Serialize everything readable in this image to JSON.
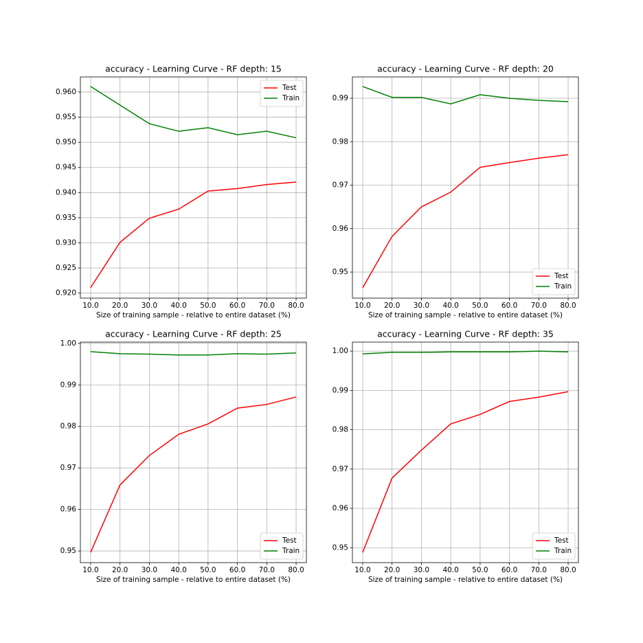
{
  "chart_data": [
    {
      "type": "line",
      "title": "accuracy - Learning Curve - RF depth: 15",
      "x_label": "Size of training sample - relative to entire dataset (%)",
      "x": [
        10,
        20,
        30,
        40,
        50,
        60,
        70,
        80
      ],
      "series": [
        {
          "name": "Test",
          "color": "#ff0000",
          "values": [
            0.9211,
            0.9301,
            0.9349,
            0.9367,
            0.9403,
            0.9408,
            0.9416,
            0.9421
          ]
        },
        {
          "name": "Train",
          "color": "#008000",
          "values": [
            0.9611,
            0.9574,
            0.9537,
            0.9522,
            0.9529,
            0.9515,
            0.9522,
            0.9509
          ]
        }
      ],
      "xlim": [
        6.5,
        83.5
      ],
      "xticks": [
        {
          "value": 10,
          "label": "10.0"
        },
        {
          "value": 20,
          "label": "20.0"
        },
        {
          "value": 30,
          "label": "30.0"
        },
        {
          "value": 40,
          "label": "40.0"
        },
        {
          "value": 50,
          "label": "50.0"
        },
        {
          "value": 60,
          "label": "60.0"
        },
        {
          "value": 70,
          "label": "70.0"
        },
        {
          "value": 80,
          "label": "80.0"
        }
      ],
      "ylim": [
        0.919,
        0.963
      ],
      "yticks": [
        {
          "value": 0.92,
          "label": "0.920"
        },
        0.925,
        {
          "value": 0.93,
          "label": "0.930"
        },
        0.935,
        {
          "value": 0.94,
          "label": "0.940"
        },
        0.945,
        {
          "value": 0.95,
          "label": "0.950"
        },
        0.955,
        {
          "value": 0.96,
          "label": "0.960"
        }
      ],
      "grid": true,
      "legend": "upper right"
    },
    {
      "type": "line",
      "title": "accuracy - Learning Curve - RF depth: 20",
      "x_label": "Size of training sample - relative to entire dataset (%)",
      "x": [
        10,
        20,
        30,
        40,
        50,
        60,
        70,
        80
      ],
      "series": [
        {
          "name": "Test",
          "color": "#ff0000",
          "values": [
            0.9464,
            0.9582,
            0.965,
            0.9684,
            0.9741,
            0.9752,
            0.9762,
            0.977
          ]
        },
        {
          "name": "Train",
          "color": "#008000",
          "values": [
            0.9927,
            0.9902,
            0.9902,
            0.9887,
            0.9908,
            0.99,
            0.9895,
            0.9892
          ]
        }
      ],
      "xlim": [
        6.5,
        83.5
      ],
      "xticks": [
        {
          "value": 10,
          "label": "10.0"
        },
        {
          "value": 20,
          "label": "20.0"
        },
        {
          "value": 30,
          "label": "30.0"
        },
        {
          "value": 40,
          "label": "40.0"
        },
        {
          "value": 50,
          "label": "50.0"
        },
        {
          "value": 60,
          "label": "60.0"
        },
        {
          "value": 70,
          "label": "70.0"
        },
        {
          "value": 80,
          "label": "80.0"
        }
      ],
      "ylim": [
        0.944,
        0.9949
      ],
      "yticks": [
        0.95,
        0.96,
        0.97,
        0.98,
        0.99
      ],
      "grid": true,
      "legend": "lower right"
    },
    {
      "type": "line",
      "title": "accuracy - Learning Curve - RF depth: 25",
      "x_label": "Size of training sample - relative to entire dataset (%)",
      "x": [
        10,
        20,
        30,
        40,
        50,
        60,
        70,
        80
      ],
      "series": [
        {
          "name": "Test",
          "color": "#ff0000",
          "values": [
            0.9497,
            0.9659,
            0.973,
            0.9781,
            0.9806,
            0.9844,
            0.9853,
            0.9871
          ]
        },
        {
          "name": "Train",
          "color": "#008000",
          "values": [
            0.998,
            0.9975,
            0.9974,
            0.9972,
            0.9972,
            0.9975,
            0.9974,
            0.9977
          ]
        }
      ],
      "xlim": [
        6.5,
        83.5
      ],
      "xticks": [
        {
          "value": 10,
          "label": "10.0"
        },
        {
          "value": 20,
          "label": "20.0"
        },
        {
          "value": 30,
          "label": "30.0"
        },
        {
          "value": 40,
          "label": "40.0"
        },
        {
          "value": 50,
          "label": "50.0"
        },
        {
          "value": 60,
          "label": "60.0"
        },
        {
          "value": 70,
          "label": "70.0"
        },
        {
          "value": 80,
          "label": "80.0"
        }
      ],
      "ylim": [
        0.9472,
        1.0003
      ],
      "yticks": [
        0.95,
        0.96,
        0.97,
        0.98,
        0.99,
        {
          "value": 1,
          "label": "1.00"
        }
      ],
      "grid": true,
      "legend": "lower right"
    },
    {
      "type": "line",
      "title": "accuracy - Learning Curve - RF depth: 35",
      "x_label": "Size of training sample - relative to entire dataset (%)",
      "x": [
        10,
        20,
        30,
        40,
        50,
        60,
        70,
        80
      ],
      "series": [
        {
          "name": "Test",
          "color": "#ff0000",
          "values": [
            0.9488,
            0.9677,
            0.9748,
            0.9815,
            0.9839,
            0.9872,
            0.9883,
            0.9897
          ]
        },
        {
          "name": "Train",
          "color": "#008000",
          "values": [
            0.9993,
            0.9997,
            0.9997,
            0.9998,
            0.9998,
            0.9998,
            1.0,
            0.9998
          ]
        }
      ],
      "xlim": [
        6.5,
        83.5
      ],
      "xticks": [
        {
          "value": 10,
          "label": "10.0"
        },
        {
          "value": 20,
          "label": "20.0"
        },
        {
          "value": 30,
          "label": "30.0"
        },
        {
          "value": 40,
          "label": "40.0"
        },
        {
          "value": 50,
          "label": "50.0"
        },
        {
          "value": 60,
          "label": "60.0"
        },
        {
          "value": 70,
          "label": "70.0"
        },
        {
          "value": 80,
          "label": "80.0"
        }
      ],
      "ylim": [
        0.9462,
        1.0023
      ],
      "yticks": [
        0.95,
        0.96,
        0.97,
        0.98,
        0.99,
        {
          "value": 1,
          "label": "1.00"
        }
      ],
      "grid": true,
      "legend": "lower right"
    }
  ]
}
